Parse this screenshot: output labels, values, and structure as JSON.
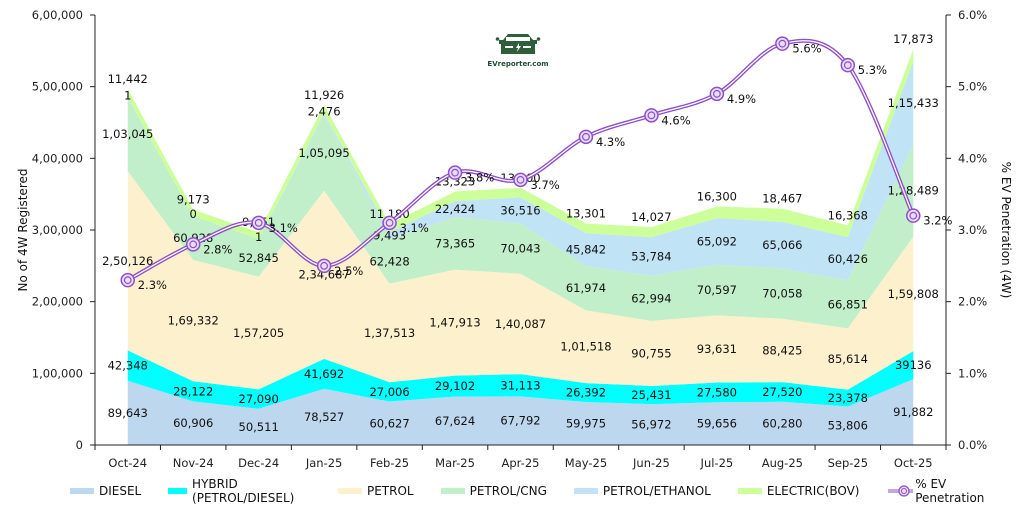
{
  "logo": {
    "text": "EVreporter.com",
    "color": "#2f5e3a"
  },
  "chart_data": {
    "type": "area",
    "stacked": true,
    "title": "",
    "categories": [
      "Oct-24",
      "Nov-24",
      "Dec-24",
      "Jan-25",
      "Feb-25",
      "Mar-25",
      "Apr-25",
      "May-25",
      "Jun-25",
      "Jul-25",
      "Aug-25",
      "Sep-25",
      "Oct-25"
    ],
    "ylabel": "No of 4W Registered",
    "y2label": "% EV Penetration (4W)",
    "ylim": [
      0,
      600000
    ],
    "y2lim": [
      0,
      6.0
    ],
    "yticks": [
      "0",
      "1,00,000",
      "2,00,000",
      "3,00,000",
      "4,00,000",
      "5,00,000",
      "6,00,000"
    ],
    "y2ticks": [
      "0.0%",
      "1.0%",
      "2.0%",
      "3.0%",
      "4.0%",
      "5.0%",
      "6.0%"
    ],
    "grid": false,
    "legend_position": "bottom",
    "series": [
      {
        "name": "DIESEL",
        "color": "#bdd7ee",
        "values": [
          89643,
          60906,
          50511,
          78527,
          60627,
          67624,
          67792,
          59975,
          56972,
          59656,
          60280,
          53806,
          91882
        ],
        "labels": [
          "89,643",
          "60,906",
          "50,511",
          "78,527",
          "60,627",
          "67,624",
          "67,792",
          "59,975",
          "56,972",
          "59,656",
          "60,280",
          "53,806",
          "91,882"
        ]
      },
      {
        "name": "HYBRID (PETROL/DIESEL)",
        "color": "#00ffff",
        "values": [
          42348,
          28122,
          27090,
          41692,
          27006,
          29102,
          31113,
          26392,
          25431,
          27580,
          27520,
          23378,
          39136
        ],
        "labels": [
          "42,348",
          "28,122",
          "27,090",
          "41,692",
          "27,006",
          "29,102",
          "31,113",
          "26,392",
          "25,431",
          "27,580",
          "27,520",
          "23,378",
          "39136"
        ]
      },
      {
        "name": "PETROL",
        "color": "#fdf0cc",
        "values": [
          250126,
          169332,
          157205,
          234687,
          137513,
          147913,
          140087,
          101518,
          90755,
          93631,
          88425,
          85614,
          159808
        ],
        "labels": [
          "2,50,126",
          "1,69,332",
          "1,57,205",
          "2,34,687",
          "1,37,513",
          "1,47,913",
          "1,40,087",
          "1,01,518",
          "90,755",
          "93,631",
          "88,425",
          "85,614",
          "1,59,808"
        ]
      },
      {
        "name": "PETROL/CNG",
        "color": "#c1efc9",
        "values": [
          103045,
          60928,
          52845,
          105095,
          62428,
          73365,
          70043,
          61974,
          62994,
          70597,
          70058,
          66851,
          128489
        ],
        "labels": [
          "1,03,045",
          "60,928",
          "52,845",
          "1,05,095",
          "62,428",
          "73,365",
          "70,043",
          "61,974",
          "62,994",
          "70,597",
          "70,058",
          "66,851",
          "1,28,489"
        ]
      },
      {
        "name": "PETROL/ETHANOL",
        "color": "#c0e3f5",
        "values": [
          1,
          0,
          1,
          2476,
          9493,
          22424,
          36516,
          45842,
          53784,
          65092,
          65066,
          60426,
          115433
        ],
        "labels": [
          "1",
          "0",
          "1",
          "2,476",
          "9,493",
          "22,424",
          "36,516",
          "45,842",
          "53,784",
          "65,092",
          "65,066",
          "60,426",
          "1,15,433"
        ]
      },
      {
        "name": "ELECTRIC(BOV)",
        "color": "#ccff99",
        "values": [
          11442,
          9173,
          9251,
          11926,
          11180,
          13323,
          13400,
          13301,
          14027,
          16300,
          18467,
          16368,
          17873
        ],
        "labels": [
          "11,442",
          "9,173",
          "9,251",
          "11,926",
          "11,180",
          "13,323",
          "13,400",
          "13,301",
          "14,027",
          "16,300",
          "18,467",
          "16,368",
          "17,873"
        ]
      }
    ],
    "line_series": {
      "name": "% EV Penetration",
      "color": "#8e4fc9",
      "axis": "secondary",
      "values": [
        2.3,
        2.8,
        3.1,
        2.5,
        3.1,
        3.8,
        3.7,
        4.3,
        4.6,
        4.9,
        5.6,
        5.3,
        3.2
      ],
      "labels": [
        "2.3%",
        "2.8%",
        "3.1%",
        "2.5%",
        "3.1%",
        "3.8%",
        "3.7%",
        "4.3%",
        "4.6%",
        "4.9%",
        "5.6%",
        "5.3%",
        "3.2%"
      ]
    }
  }
}
